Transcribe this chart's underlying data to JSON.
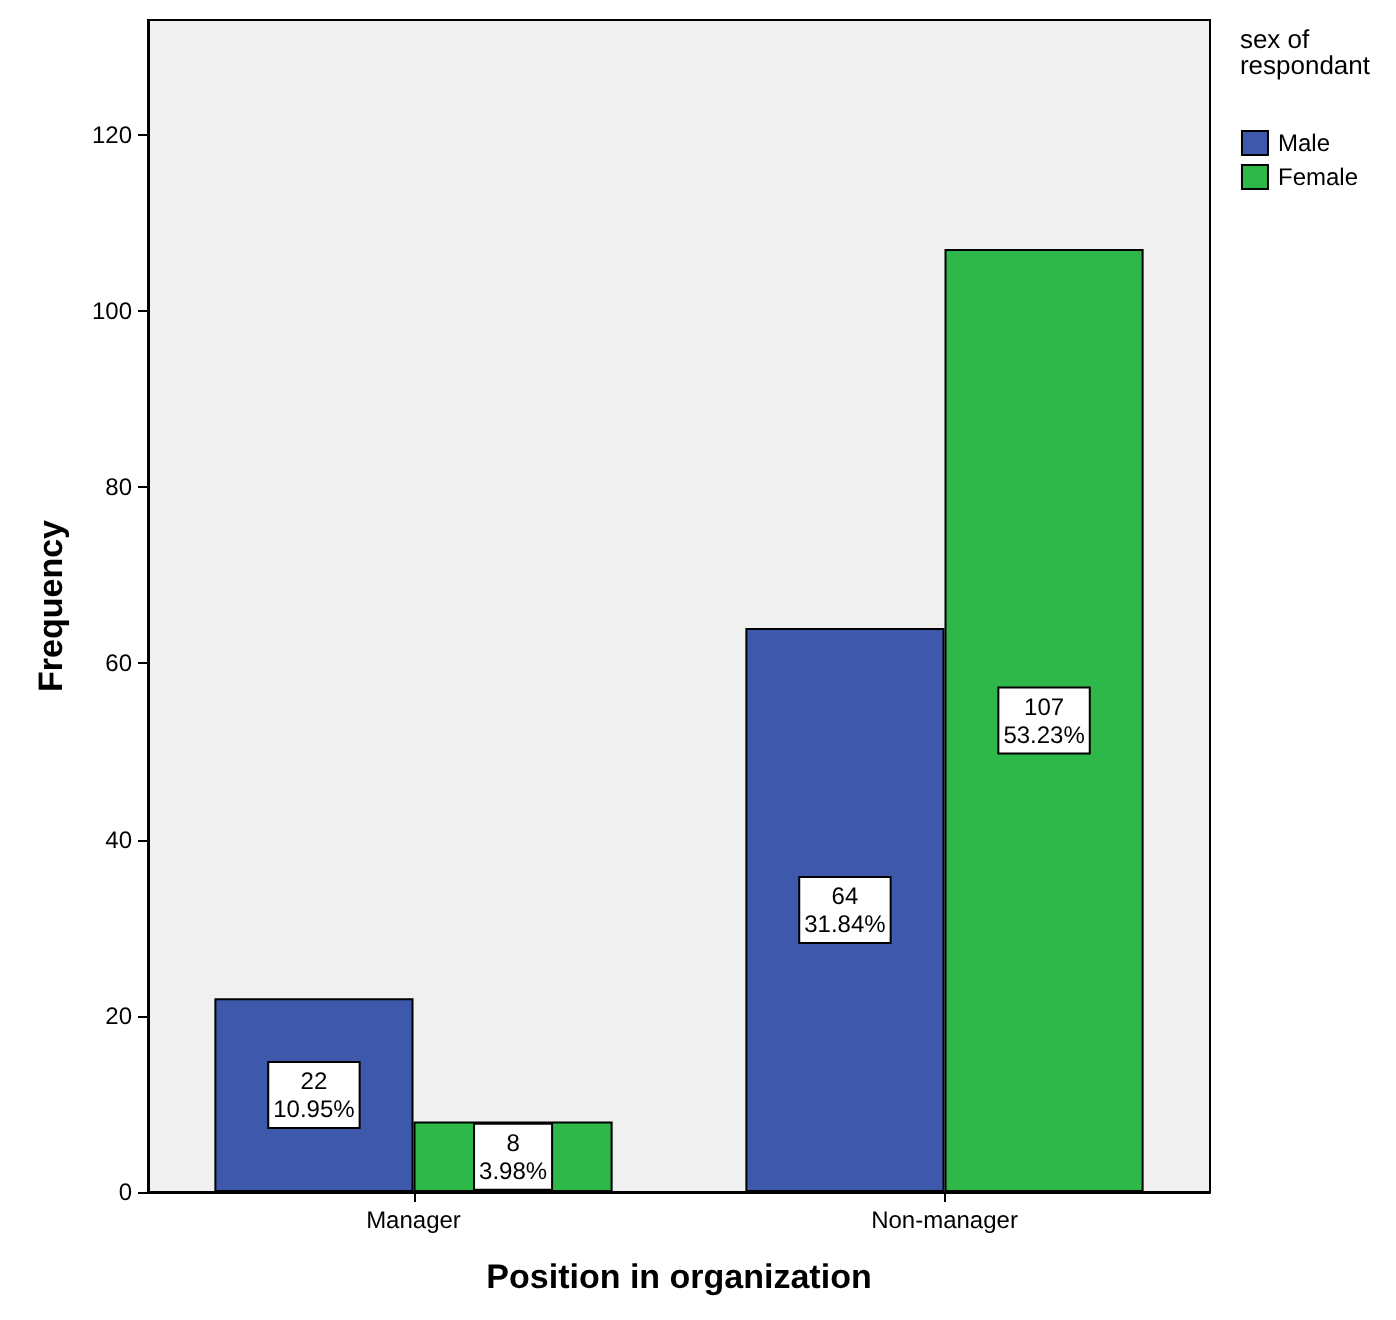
{
  "chart_data": {
    "type": "bar",
    "xlabel": "Position in organization",
    "ylabel": "Frequency",
    "legend_title": "sex of\nrespondant",
    "categories": [
      "Manager",
      "Non-manager"
    ],
    "series": [
      {
        "name": "Male",
        "color": "#3e58ac",
        "values": [
          22,
          64
        ],
        "value_labels": [
          "22\n10.95%",
          "64\n31.84%"
        ]
      },
      {
        "name": "Female",
        "color": "#2fb84a",
        "values": [
          8,
          107
        ],
        "value_labels": [
          "8\n3.98%",
          "107\n53.23%"
        ]
      }
    ],
    "ylim": [
      0,
      133
    ],
    "yticks": [
      0,
      20,
      40,
      60,
      80,
      100,
      120
    ],
    "grid": false,
    "legend": "top right"
  }
}
